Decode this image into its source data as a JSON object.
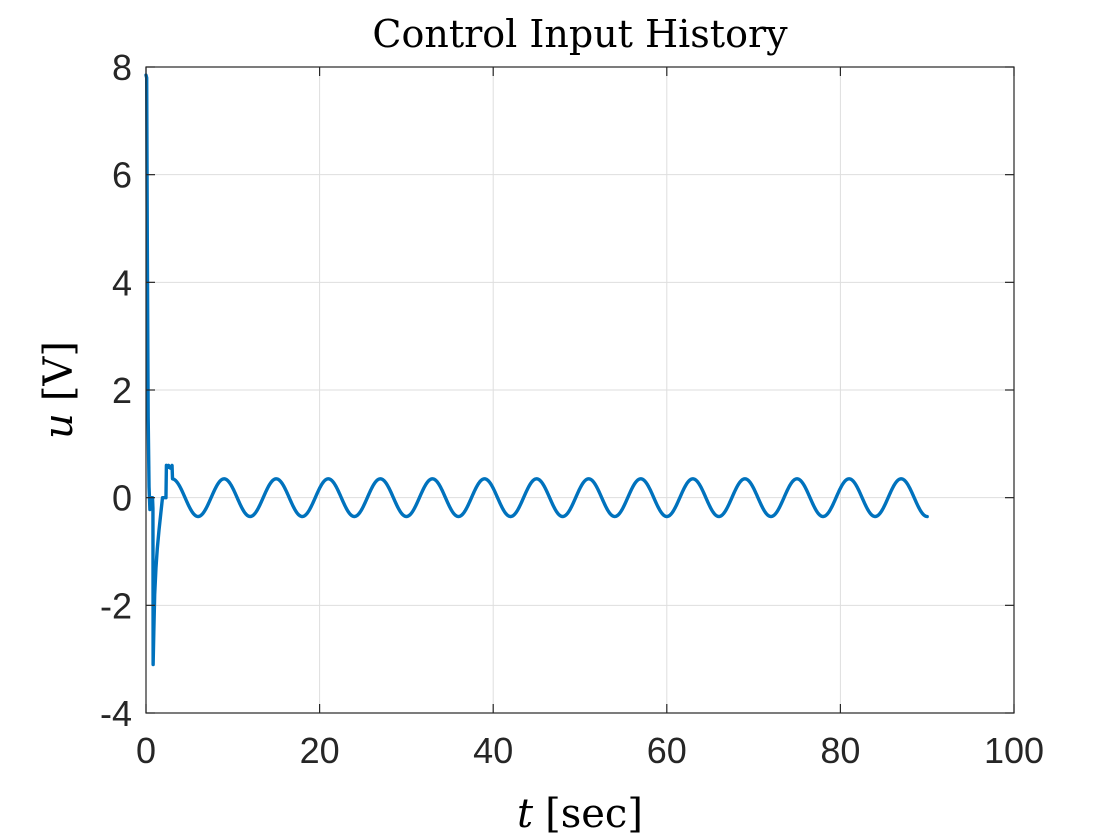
{
  "chart_data": {
    "type": "line",
    "title": "Control Input History",
    "xlabel": {
      "var": "t",
      "unit": "[sec]"
    },
    "ylabel": {
      "var": "u",
      "unit": "[V]"
    },
    "xlim": [
      0,
      100
    ],
    "ylim": [
      -4,
      8
    ],
    "xticks": [
      0,
      20,
      40,
      60,
      80,
      100
    ],
    "yticks": [
      -4,
      -2,
      0,
      2,
      4,
      6,
      8
    ],
    "grid": true,
    "line_color": "#0072BD",
    "series": [
      {
        "transient": {
          "x": [
            0,
            0.08,
            0.15,
            0.25,
            0.35,
            0.45,
            0.55,
            0.65,
            0.75,
            0.8,
            0.82,
            0.9,
            1.0,
            1.15,
            1.3,
            1.5,
            1.7,
            1.9,
            2.05,
            2.1,
            2.3,
            2.35,
            2.4,
            2.6,
            2.8,
            3.0
          ],
          "y": [
            7.85,
            7.8,
            4.8,
            1.5,
            0.2,
            -0.22,
            0.0,
            0.0,
            0.0,
            -0.2,
            -3.1,
            -2.5,
            -1.8,
            -1.3,
            -0.95,
            -0.6,
            -0.3,
            0.0,
            0.0,
            0.0,
            0.0,
            0.6,
            0.55,
            0.6,
            0.55,
            0.6
          ]
        },
        "steady_state": {
          "x_start": 3.0,
          "x_end": 90,
          "amplitude": 0.35,
          "period": 6.0,
          "peak_at": 3.0,
          "mean": 0.0,
          "final_value": -0.33
        }
      }
    ]
  }
}
